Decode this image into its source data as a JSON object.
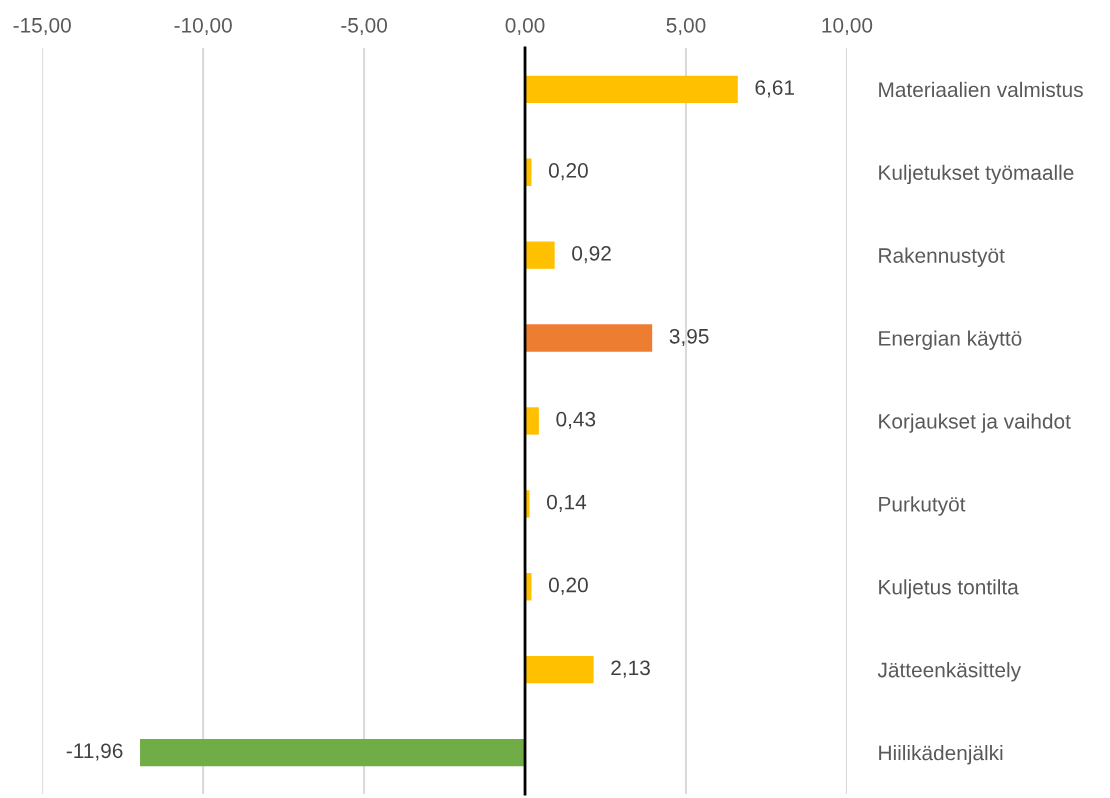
{
  "chart_data": {
    "type": "bar",
    "orientation": "horizontal",
    "categories": [
      "Materiaalien valmistus",
      "Kuljetukset työmaalle",
      "Rakennustyöt",
      "Energian käyttö",
      "Korjaukset ja vaihdot",
      "Purkutyöt",
      "Kuljetus tontilta",
      "Jätteenkäsittely",
      "Hiilikädenjälki"
    ],
    "values": [
      6.61,
      0.2,
      0.92,
      3.95,
      0.43,
      0.14,
      0.2,
      2.13,
      -11.96
    ],
    "colors": [
      "#ffc000",
      "#ffc000",
      "#ffc000",
      "#ed7d31",
      "#ffc000",
      "#ffc000",
      "#ffc000",
      "#ffc000",
      "#70ad47"
    ],
    "value_labels": [
      "6,61",
      "0,20",
      "0,92",
      "3,95",
      "0,43",
      "0,14",
      "0,20",
      "2,13",
      "-11,96"
    ],
    "xlim": [
      -15,
      10
    ],
    "xticks": [
      {
        "value": -15,
        "label": "-15,00"
      },
      {
        "value": -10,
        "label": "-10,00"
      },
      {
        "value": -5,
        "label": "-5,00"
      },
      {
        "value": 0,
        "label": "0,00"
      },
      {
        "value": 5,
        "label": "5,00"
      },
      {
        "value": 10,
        "label": "10,00"
      }
    ],
    "grid": "x",
    "legend": false
  }
}
